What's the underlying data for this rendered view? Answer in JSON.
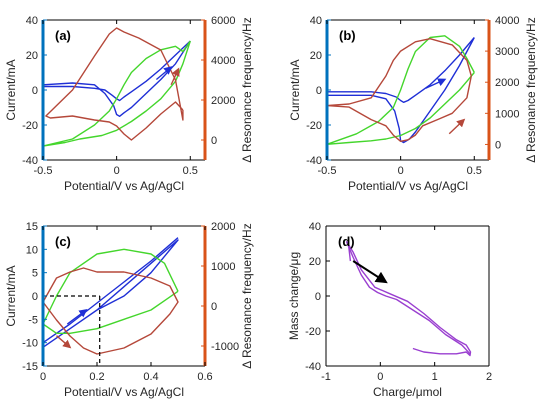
{
  "colors": {
    "left_axis": "#0072bd",
    "right_axis": "#d95319",
    "blue_series": "#1f2fd6",
    "green_series": "#44d62c",
    "brown_series": "#b5483a",
    "purple_series": "#9a3fd0",
    "arrow_black": "#000000"
  },
  "chart_data": [
    {
      "panel": "(a)",
      "type": "line",
      "xlabel": "Potential/V vs Ag/AgCl",
      "ylabel": "Current/mA",
      "ylabel_right": "Δ Resonance frequency/Hz",
      "xlim": [
        -0.5,
        0.6
      ],
      "ylim": [
        -40,
        40
      ],
      "ylim_right": [
        -1000,
        6000
      ],
      "xticks": [
        "-0.5",
        "0",
        "0.5"
      ],
      "yticks": [
        "-40",
        "-20",
        "0",
        "20",
        "40"
      ],
      "yticks_right": [
        "0",
        "2000",
        "4000",
        "6000"
      ],
      "series": [
        {
          "axis": "left",
          "color": "blue",
          "x": [
            0.5,
            0.4,
            0.3,
            0.2,
            0.1,
            0.05,
            0.02,
            0.0,
            -0.03,
            -0.08,
            -0.15,
            -0.3,
            -0.5,
            -0.5,
            -0.3,
            -0.15,
            -0.08,
            -0.02,
            0.0,
            0.02,
            0.05,
            0.1,
            0.2,
            0.3,
            0.4,
            0.5
          ],
          "y": [
            28,
            20,
            12,
            5,
            -1,
            -4,
            -6,
            -5,
            -3,
            0,
            1,
            2,
            2,
            3,
            4,
            3,
            -2,
            -9,
            -14,
            -15,
            -13,
            -10,
            -2,
            6,
            15,
            28
          ]
        },
        {
          "axis": "left",
          "color": "green",
          "x": [
            0.5,
            0.45,
            0.4,
            0.3,
            0.2,
            0.1,
            0.0,
            -0.1,
            -0.25,
            -0.35,
            -0.5,
            -0.3,
            -0.15,
            -0.05,
            0.0,
            0.05,
            0.1,
            0.2,
            0.3,
            0.4,
            0.45,
            0.5
          ],
          "y": [
            28,
            15,
            5,
            -5,
            -12,
            -18,
            -23,
            -26,
            -28,
            -30,
            -32,
            -28,
            -20,
            -12,
            -5,
            3,
            10,
            18,
            23,
            25,
            22,
            28
          ]
        },
        {
          "axis": "right",
          "color": "brown",
          "x": [
            0.45,
            0.45,
            0.4,
            0.3,
            0.15,
            0.05,
            0.0,
            -0.05,
            -0.15,
            -0.3,
            -0.48,
            -0.45,
            -0.3,
            -0.15,
            -0.05,
            0.0,
            0.05,
            0.1,
            0.2,
            0.3,
            0.4,
            0.45
          ],
          "y": [
            1500,
            1000,
            3000,
            4500,
            5100,
            5400,
            5600,
            5300,
            4200,
            2500,
            1200,
            1100,
            1200,
            1000,
            900,
            700,
            300,
            0,
            600,
            1300,
            1900,
            1500
          ]
        }
      ],
      "arrows": [
        {
          "color": "blue",
          "from": [
            0.27,
            6
          ],
          "to": [
            0.37,
            13
          ]
        },
        {
          "color": "brown",
          "from": [
            0.37,
            3
          ],
          "to": [
            0.42,
            12
          ]
        }
      ]
    },
    {
      "panel": "(b)",
      "type": "line",
      "xlabel": "Potential/V vs Ag/AgCl",
      "ylabel": "Current/mA",
      "ylabel_right": "Δ Resonance frequency/Hz",
      "xlim": [
        -0.5,
        0.6
      ],
      "ylim": [
        -40,
        40
      ],
      "ylim_right": [
        -500,
        4000
      ],
      "xticks": [
        "-0.5",
        "0",
        "0.5"
      ],
      "yticks": [
        "-40",
        "-20",
        "0",
        "20",
        "40"
      ],
      "yticks_right": [
        "0",
        "1000",
        "2000",
        "3000",
        "4000"
      ],
      "series": [
        {
          "axis": "left",
          "color": "blue",
          "x": [
            0.5,
            0.4,
            0.3,
            0.2,
            0.1,
            0.05,
            0.02,
            0.0,
            -0.03,
            -0.1,
            -0.2,
            -0.35,
            -0.5,
            -0.5,
            -0.35,
            -0.2,
            -0.1,
            -0.04,
            -0.01,
            0.0,
            0.02,
            0.06,
            0.1,
            0.2,
            0.3,
            0.4,
            0.5
          ],
          "y": [
            30,
            20,
            11,
            3,
            -3,
            -6,
            -7,
            -6,
            -4,
            -2,
            -1,
            -1,
            -1,
            -3,
            -3,
            -3,
            -5,
            -12,
            -22,
            -29,
            -30,
            -28,
            -24,
            -12,
            0,
            14,
            30
          ]
        },
        {
          "axis": "left",
          "color": "green",
          "x": [
            0.5,
            0.45,
            0.4,
            0.3,
            0.2,
            0.1,
            0.0,
            -0.1,
            -0.2,
            -0.35,
            -0.5,
            -0.3,
            -0.15,
            -0.05,
            0.0,
            0.05,
            0.1,
            0.2,
            0.3,
            0.4,
            0.45,
            0.5
          ],
          "y": [
            10,
            5,
            0,
            -8,
            -16,
            -22,
            -26,
            -28,
            -29,
            -30,
            -31,
            -25,
            -18,
            -10,
            0,
            12,
            22,
            30,
            31,
            25,
            18,
            10
          ]
        },
        {
          "axis": "right",
          "color": "brown",
          "x": [
            0.48,
            0.45,
            0.35,
            0.2,
            0.1,
            0.0,
            -0.05,
            -0.1,
            -0.2,
            -0.35,
            -0.5,
            -0.35,
            -0.2,
            -0.1,
            -0.05,
            0.0,
            0.05,
            0.1,
            0.15,
            0.25,
            0.35,
            0.45,
            0.48
          ],
          "y": [
            2200,
            2700,
            3200,
            3400,
            3300,
            3000,
            2700,
            2200,
            1500,
            1300,
            1250,
            1200,
            800,
            600,
            300,
            100,
            150,
            300,
            600,
            800,
            1000,
            1500,
            2200
          ]
        }
      ],
      "arrows": [
        {
          "color": "blue",
          "from": [
            0.17,
            1
          ],
          "to": [
            0.3,
            6
          ]
        },
        {
          "color": "brown",
          "from": [
            0.33,
            -25
          ],
          "to": [
            0.43,
            -17
          ]
        }
      ]
    },
    {
      "panel": "(c)",
      "type": "line",
      "xlabel": "Potential/V vs Ag/AgCl",
      "ylabel": "Current/mA",
      "ylabel_right": "Δ Resonance frequency/Hz",
      "xlim": [
        0,
        0.6
      ],
      "ylim": [
        -15,
        15
      ],
      "ylim_right": [
        -1500,
        2000
      ],
      "xticks": [
        "0",
        "0.2",
        "0.4",
        "0.6"
      ],
      "yticks": [
        "-15",
        "-10",
        "-5",
        "0",
        "5",
        "10",
        "15"
      ],
      "yticks_right": [
        "-1000",
        "0",
        "1000",
        "2000"
      ],
      "series": [
        {
          "axis": "left",
          "color": "blue",
          "x": [
            0.0,
            0.1,
            0.2,
            0.3,
            0.4,
            0.5,
            0.4,
            0.3,
            0.2,
            0.1,
            0.0
          ],
          "y": [
            -11,
            -7,
            -3,
            2,
            7,
            12,
            5,
            0,
            -3,
            -7,
            -11
          ]
        },
        {
          "axis": "left",
          "color": "blue",
          "x": [
            0.0,
            0.1,
            0.2,
            0.3,
            0.4,
            0.5
          ],
          "y": [
            -10,
            -6,
            -1.5,
            3,
            7.5,
            12.5
          ]
        },
        {
          "axis": "left",
          "color": "green",
          "x": [
            0.5,
            0.45,
            0.4,
            0.3,
            0.2,
            0.1,
            0.05,
            0.0,
            0.05,
            0.1,
            0.2,
            0.3,
            0.4,
            0.45,
            0.5
          ],
          "y": [
            1,
            -1,
            -3,
            -5,
            -7,
            -8,
            -8,
            -6,
            0,
            5,
            9,
            10,
            9,
            7,
            1
          ]
        },
        {
          "axis": "right",
          "color": "brown",
          "x": [
            0.0,
            0.05,
            0.1,
            0.15,
            0.2,
            0.3,
            0.4,
            0.47,
            0.5,
            0.47,
            0.4,
            0.3,
            0.2,
            0.15,
            0.1,
            0.05,
            0.0
          ],
          "y": [
            100,
            -350,
            -750,
            -1050,
            -1200,
            -1050,
            -700,
            -200,
            100,
            500,
            700,
            850,
            850,
            950,
            850,
            700,
            100
          ]
        }
      ],
      "guide_lines": [
        {
          "style": "dashed",
          "x": [
            0,
            0.21
          ],
          "y": [
            0,
            0
          ]
        },
        {
          "style": "dashed",
          "x": [
            0.21,
            0.21
          ],
          "y": [
            0,
            -15
          ]
        }
      ],
      "arrows": [
        {
          "color": "blue",
          "from": [
            0.09,
            -6
          ],
          "to": [
            0.16,
            -3
          ]
        },
        {
          "color": "brown",
          "from": [
            0.05,
            -8.5
          ],
          "to": [
            0.1,
            -11
          ]
        }
      ]
    },
    {
      "panel": "(d)",
      "type": "line",
      "xlabel": "Charge/μmol",
      "ylabel": "Mass change/μg",
      "xlim": [
        -1,
        2
      ],
      "ylim": [
        -40,
        40
      ],
      "xticks": [
        "-1",
        "0",
        "1",
        "2"
      ],
      "yticks": [
        "-40",
        "-20",
        "0",
        "20",
        "40"
      ],
      "series": [
        {
          "axis": "left",
          "color": "purple",
          "x": [
            -0.55,
            -0.58,
            -0.62,
            -0.5,
            -0.35,
            -0.1,
            0.2,
            0.5,
            0.8,
            1.1,
            1.4,
            1.58,
            1.62,
            1.66,
            1.65,
            1.58,
            1.4,
            1.1,
            0.8,
            0.6
          ],
          "y": [
            20,
            28,
            31,
            25,
            15,
            5,
            1,
            -3,
            -10,
            -18,
            -25,
            -28,
            -30,
            -32,
            -34,
            -32,
            -33,
            -33,
            -32,
            -30
          ]
        },
        {
          "axis": "left",
          "color": "purple",
          "x": [
            -0.58,
            -0.5,
            -0.35,
            -0.2,
            -0.05,
            0.1,
            0.3,
            0.6,
            0.9,
            1.2,
            1.5,
            1.65
          ],
          "y": [
            28,
            22,
            12,
            5,
            2,
            0,
            -2,
            -8,
            -14,
            -22,
            -28,
            -33
          ]
        }
      ],
      "arrows": [
        {
          "color": "black",
          "from": [
            -0.5,
            20
          ],
          "to": [
            0.1,
            8
          ]
        }
      ]
    }
  ]
}
